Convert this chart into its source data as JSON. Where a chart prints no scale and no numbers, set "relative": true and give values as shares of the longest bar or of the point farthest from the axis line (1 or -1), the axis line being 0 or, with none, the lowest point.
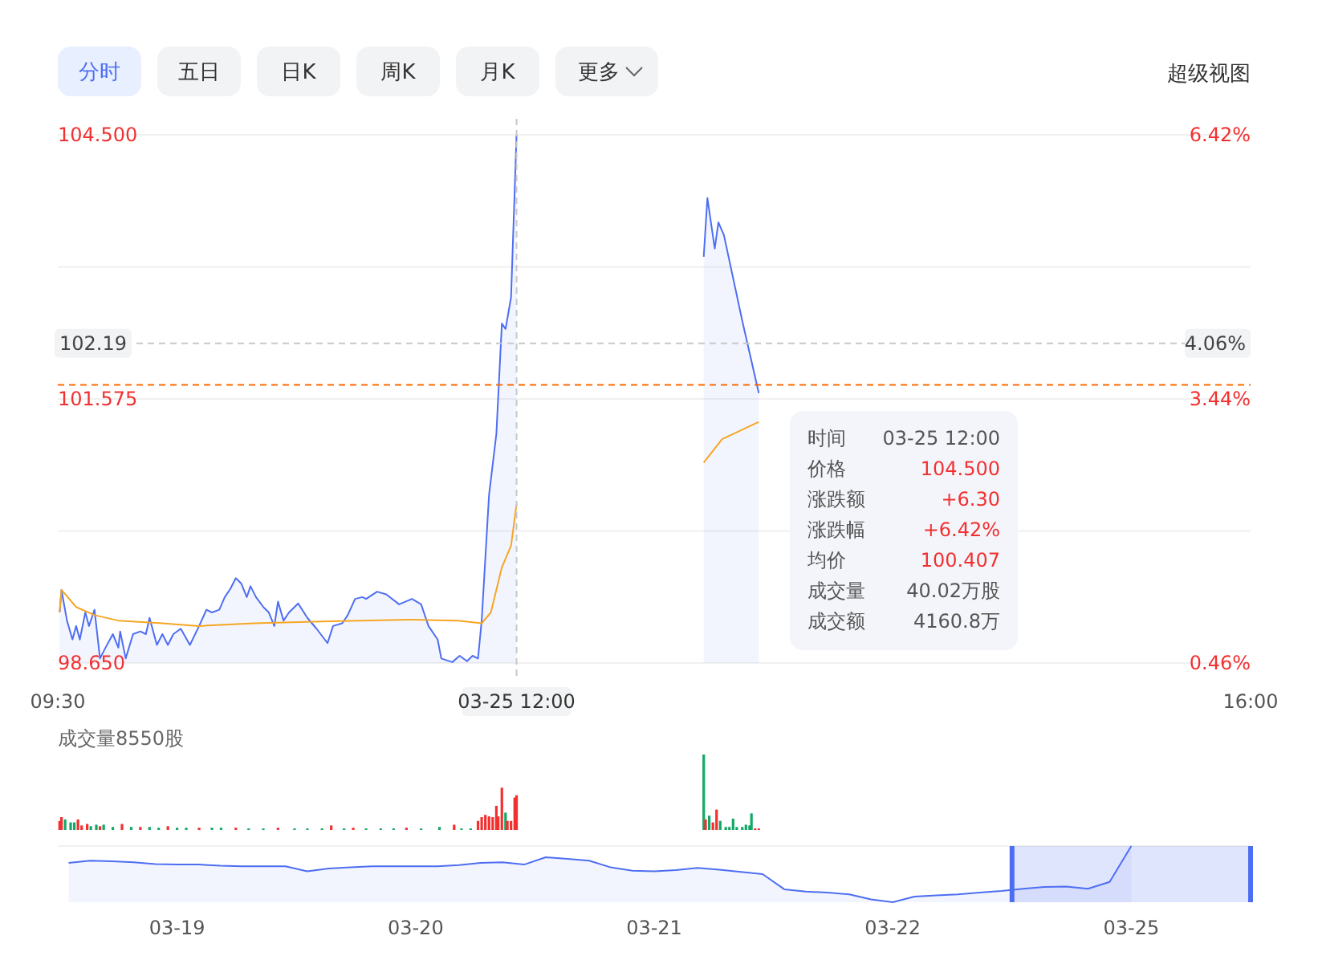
{
  "chart_data": [
    {
      "type": "line",
      "xlim": [
        9.5,
        16
      ],
      "xticks": [
        {
          "value": 9.5,
          "label": "09:30"
        },
        {
          "value": 16,
          "label": "16:00"
        }
      ],
      "ylim": [
        98.65,
        104.5
      ],
      "yticks": [
        {
          "value": 98.65,
          "label": "98.650"
        },
        {
          "value": 100.1125,
          "label": null
        },
        {
          "value": 101.575,
          "label": "101.575"
        },
        {
          "value": 103.0375,
          "label": null
        },
        {
          "value": 104.5,
          "label": "104.500"
        }
      ],
      "y2lim": [
        0.46,
        6.42
      ],
      "y2ticks": [
        {
          "value": 0.46,
          "label": "0.46%"
        },
        {
          "value": 1.95,
          "label": null
        },
        {
          "value": 3.44,
          "label": "3.44%"
        },
        {
          "value": 4.93,
          "label": null
        },
        {
          "value": 6.42,
          "label": "6.42%"
        }
      ],
      "grid": "y",
      "marker": "none",
      "series": [
        {
          "type": "area",
          "color": "#4e6ef2",
          "x": [
            9.51,
            9.52,
            9.55,
            9.58,
            9.6,
            9.62,
            9.65,
            9.67,
            9.7,
            9.73,
            9.76,
            9.8,
            9.83,
            9.84,
            9.87,
            9.91,
            9.95,
            9.98,
            10.0,
            10.04,
            10.07,
            10.1,
            10.13,
            10.17,
            10.22,
            10.27,
            10.31,
            10.34,
            10.38,
            10.41,
            10.44,
            10.47,
            10.5,
            10.53,
            10.55,
            10.58,
            10.62,
            10.65,
            10.68,
            10.7,
            10.73,
            10.76,
            10.81,
            10.86,
            10.91,
            10.97,
            11.0,
            11.05,
            11.08,
            11.12,
            11.16,
            11.18,
            11.24,
            11.29,
            11.36,
            11.43,
            11.48,
            11.52,
            11.57,
            11.59,
            11.65,
            11.69,
            11.73,
            11.76,
            11.79,
            11.81,
            11.85,
            11.89,
            11.92,
            11.94,
            11.97,
            12.0,
            13.02,
            13.04,
            13.08,
            13.1,
            13.13,
            13.23,
            13.32
          ],
          "values": [
            99.21,
            99.46,
            99.12,
            98.91,
            99.06,
            98.91,
            99.21,
            99.06,
            99.24,
            98.7,
            98.82,
            98.97,
            98.82,
            99.0,
            98.7,
            98.97,
            99.0,
            98.97,
            99.15,
            98.85,
            98.97,
            98.85,
            98.97,
            99.03,
            98.85,
            99.06,
            99.24,
            99.21,
            99.24,
            99.38,
            99.47,
            99.59,
            99.53,
            99.38,
            99.5,
            99.38,
            99.27,
            99.21,
            99.06,
            99.33,
            99.12,
            99.21,
            99.31,
            99.15,
            99.03,
            98.87,
            99.06,
            99.09,
            99.18,
            99.36,
            99.38,
            99.36,
            99.44,
            99.41,
            99.3,
            99.36,
            99.3,
            99.06,
            98.91,
            98.7,
            98.66,
            98.73,
            98.67,
            98.73,
            98.7,
            99.12,
            100.51,
            101.19,
            102.41,
            102.35,
            102.7,
            104.5,
            103.15,
            103.8,
            103.24,
            103.53,
            103.39,
            102.44,
            101.64
          ]
        },
        {
          "type": "line",
          "color": "#f5a623",
          "x": [
            9.51,
            9.52,
            9.6,
            9.7,
            9.83,
            10.07,
            10.27,
            10.57,
            10.94,
            11.43,
            11.68,
            11.81,
            11.86,
            11.92,
            11.97,
            12.0,
            13.02,
            13.12,
            13.32
          ],
          "values": [
            99.21,
            99.46,
            99.27,
            99.18,
            99.12,
            99.09,
            99.06,
            99.09,
            99.11,
            99.13,
            99.12,
            99.09,
            99.21,
            99.71,
            99.95,
            100.41,
            100.87,
            101.13,
            101.32
          ]
        }
      ],
      "ref_lines": [
        {
          "axis": "y",
          "value": 102.19,
          "label": "102.19",
          "color": "#c8c8c8",
          "line_style": "dashed"
        },
        {
          "axis": "y",
          "value": 101.73,
          "color": "#ff6a00",
          "line_style": "dashed"
        },
        {
          "axis": "x",
          "value": 12,
          "label": "03-25 12:00",
          "color": "#c8c8c8",
          "line_style": "dashed"
        }
      ],
      "annotations": [
        "分时",
        "五日",
        "日K",
        "周K",
        "月K",
        "更多",
        "超级视图",
        "时间",
        "03-25 12:00",
        "价格",
        "104.500",
        "涨跌额",
        "+6.30",
        "涨跌幅",
        "+6.42%",
        "均价",
        "100.407",
        "成交量",
        "40.02万股",
        "成交额",
        "4160.8万",
        {
          "text": "4.06%",
          "x": 16,
          "y": 102.19
        }
      ]
    },
    {
      "type": "bar",
      "title": "成交量8550股",
      "relative": true,
      "tick_labels": false,
      "xlim": [
        9.5,
        16
      ],
      "x": [
        9.51,
        9.52,
        9.54,
        9.57,
        9.59,
        9.61,
        9.63,
        9.66,
        9.68,
        9.71,
        9.73,
        9.75,
        9.8,
        9.85,
        9.9,
        9.95,
        10.0,
        10.05,
        10.1,
        10.15,
        10.2,
        10.27,
        10.34,
        10.39,
        10.47,
        10.54,
        10.62,
        10.7,
        10.79,
        10.86,
        10.94,
        10.99,
        11.06,
        11.11,
        11.18,
        11.26,
        11.33,
        11.4,
        11.48,
        11.58,
        11.66,
        11.7,
        11.75,
        11.79,
        11.81,
        11.83,
        11.85,
        11.87,
        11.89,
        11.9,
        11.92,
        11.94,
        11.95,
        11.97,
        11.99,
        12.0,
        13.02,
        13.03,
        13.05,
        13.07,
        13.09,
        13.11,
        13.14,
        13.16,
        13.18,
        13.2,
        13.23,
        13.25,
        13.27,
        13.28,
        13.3,
        13.32
      ],
      "values": [
        0.12,
        0.17,
        0.14,
        0.1,
        0.1,
        0.14,
        0.06,
        0.08,
        0.05,
        0.07,
        0.05,
        0.07,
        0.04,
        0.08,
        0.04,
        0.04,
        0.04,
        0.03,
        0.05,
        0.03,
        0.03,
        0.03,
        0.03,
        0.03,
        0.03,
        0.02,
        0.02,
        0.03,
        0.02,
        0.02,
        0.02,
        0.06,
        0.02,
        0.03,
        0.02,
        0.02,
        0.02,
        0.03,
        0.02,
        0.04,
        0.07,
        0.02,
        0.02,
        0.12,
        0.17,
        0.2,
        0.18,
        0.17,
        0.32,
        0.18,
        0.56,
        0.23,
        0.12,
        0.12,
        0.43,
        0.46,
        1,
        0.14,
        0.19,
        0.1,
        0.27,
        0.12,
        0.04,
        0.04,
        0.15,
        0.04,
        0.04,
        0.07,
        0.06,
        0.22,
        0.02,
        0.02
      ],
      "colors": [
        "#f23030",
        "#f23030",
        "#13a867",
        "#13a867",
        "#13a867",
        "#f23030",
        "#f23030",
        "#f23030",
        "#13a867",
        "#13a867",
        "#f23030",
        "#13a867",
        "#13a867",
        "#f23030",
        "#13a867",
        "#f23030",
        "#13a867",
        "#13a867",
        "#f23030",
        "#13a867",
        "#13a867",
        "#f23030",
        "#13a867",
        "#13a867",
        "#f23030",
        "#13a867",
        "#13a867",
        "#f23030",
        "#13a867",
        "#13a867",
        "#13a867",
        "#f23030",
        "#13a867",
        "#f23030",
        "#13a867",
        "#13a867",
        "#13a867",
        "#f23030",
        "#13a867",
        "#13a867",
        "#f23030",
        "#13a867",
        "#13a867",
        "#f23030",
        "#f23030",
        "#f23030",
        "#f23030",
        "#f23030",
        "#f23030",
        "#f23030",
        "#f23030",
        "#13a867",
        "#f23030",
        "#f23030",
        "#f23030",
        "#f23030",
        "#13a867",
        "#f23030",
        "#13a867",
        "#f23030",
        "#f23030",
        "#13a867",
        "#13a867",
        "#13a867",
        "#13a867",
        "#13a867",
        "#13a867",
        "#13a867",
        "#13a867",
        "#13a867",
        "#f23030",
        "#f23030"
      ]
    },
    {
      "type": "area",
      "relative": true,
      "color": "#4e6ef2",
      "categories": [
        null,
        null,
        null,
        null,
        null,
        "03-19",
        null,
        null,
        null,
        null,
        null,
        null,
        null,
        null,
        null,
        null,
        "03-20",
        null,
        null,
        null,
        null,
        null,
        null,
        null,
        null,
        null,
        null,
        "03-21",
        null,
        null,
        null,
        null,
        null,
        null,
        null,
        null,
        null,
        null,
        "03-22",
        null,
        null,
        null,
        null,
        null,
        null,
        null,
        null,
        null,
        null,
        "03-25",
        null,
        null,
        null,
        null,
        null
      ],
      "values": [
        0.7,
        0.74,
        0.73,
        0.71,
        0.68,
        0.67,
        0.67,
        0.65,
        0.64,
        0.64,
        0.64,
        0.55,
        0.6,
        0.62,
        0.64,
        0.64,
        0.64,
        0.64,
        0.66,
        0.7,
        0.71,
        0.67,
        0.8,
        0.77,
        0.74,
        0.62,
        0.56,
        0.55,
        0.57,
        0.61,
        0.58,
        0.54,
        0.5,
        0.23,
        0.19,
        0.17,
        0.14,
        0.05,
        0,
        0.1,
        0.12,
        0.14,
        0.17,
        0.2,
        0.24,
        0.27,
        0.28,
        0.24,
        0.36,
        1,
        null,
        null,
        null,
        null,
        null
      ]
    }
  ]
}
